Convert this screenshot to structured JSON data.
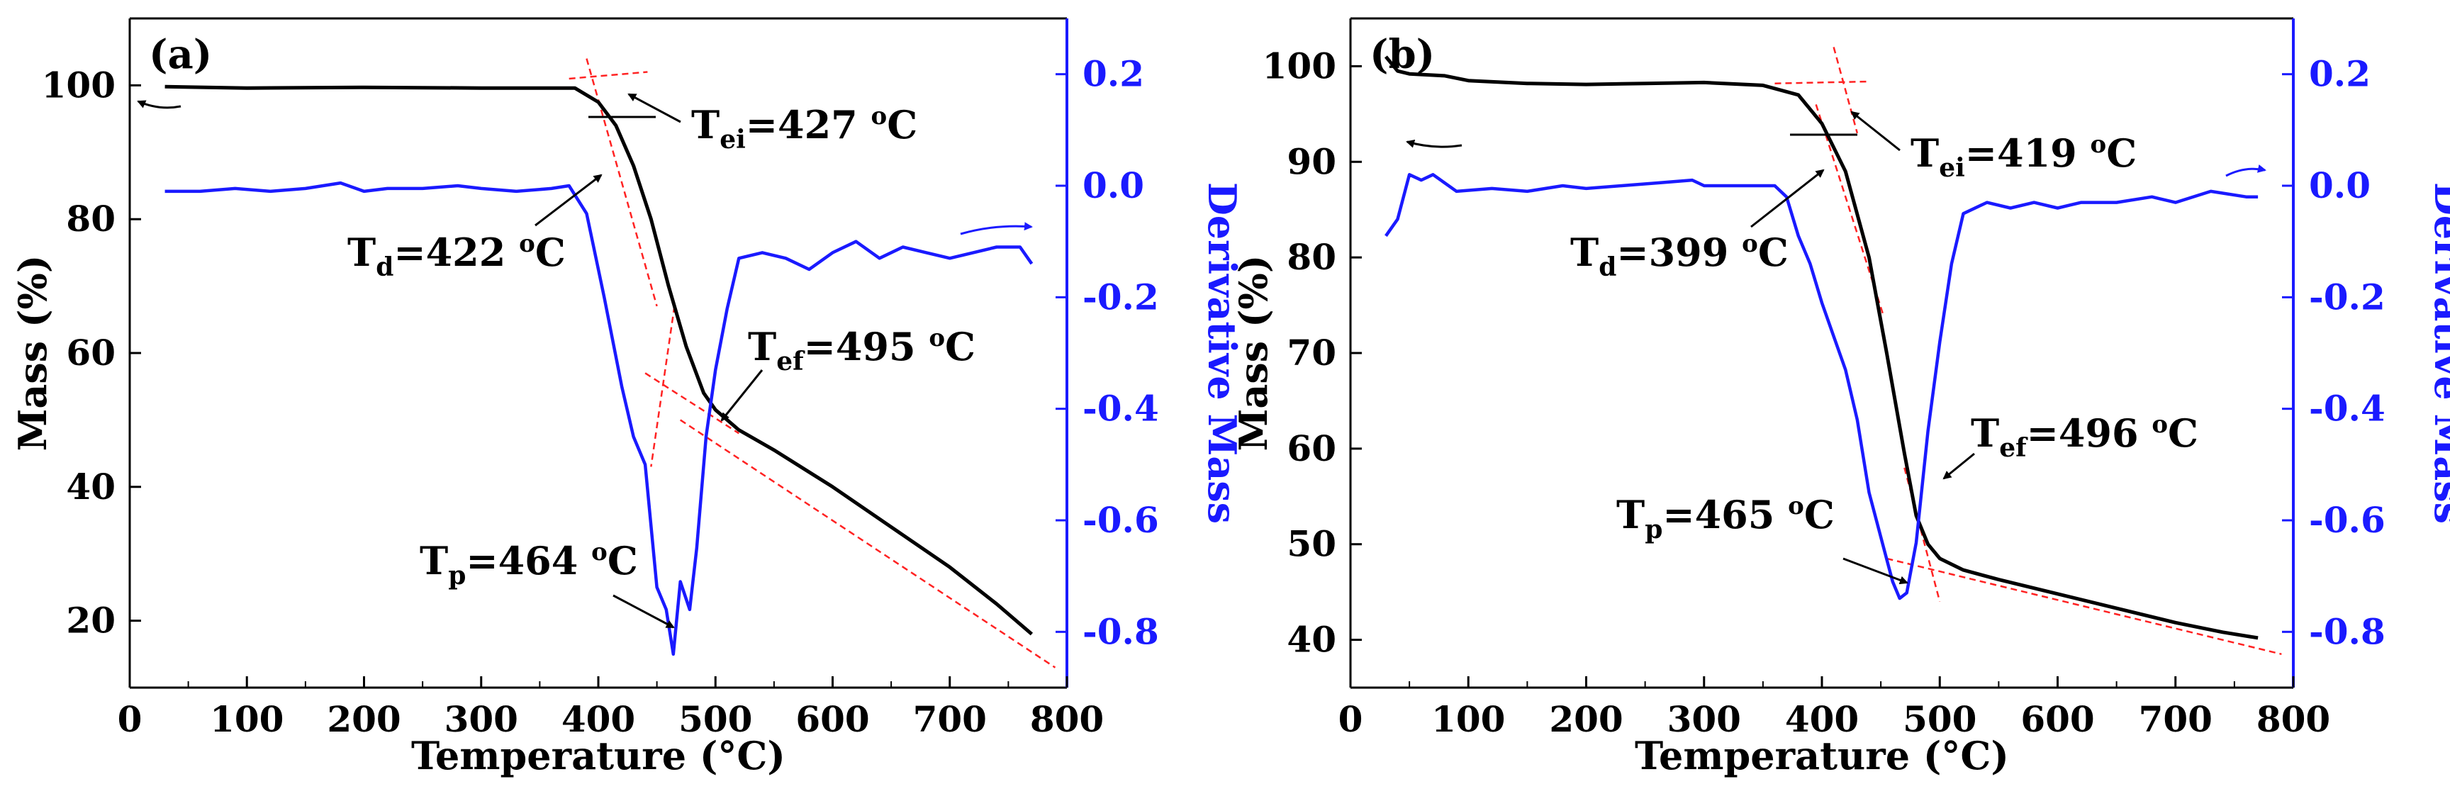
{
  "chart_data": [
    {
      "type": "line",
      "panel_label": "(a)",
      "xlabel": "Temperature (°C)",
      "ylabel_left": "Mass (%)",
      "ylabel_right": "Derivative Mass",
      "xlim": [
        0,
        800
      ],
      "ylim_left": [
        10,
        110
      ],
      "ylim_right": [
        -0.9,
        0.3
      ],
      "xticks": [
        "0",
        "100",
        "200",
        "300",
        "400",
        "500",
        "600",
        "700",
        "800"
      ],
      "yticks_left": [
        "20",
        "40",
        "60",
        "80",
        "100"
      ],
      "yticks_right": [
        "0.2",
        "0.0",
        "-0.2",
        "-0.4",
        "-0.6",
        "-0.8"
      ],
      "colors": {
        "mass": "#000000",
        "derivative": "#1a1aff",
        "tangent": "#ff2222",
        "axis_right": "#1a1aff"
      },
      "series": [
        {
          "name": "Mass",
          "axis": "left",
          "x": [
            30,
            100,
            200,
            300,
            380,
            400,
            415,
            430,
            445,
            460,
            475,
            490,
            500,
            520,
            550,
            600,
            650,
            700,
            740,
            770
          ],
          "y": [
            99.8,
            99.6,
            99.7,
            99.6,
            99.6,
            97.5,
            94,
            88,
            80,
            70,
            61,
            54,
            51.5,
            48.5,
            45.5,
            40,
            34,
            28,
            22.5,
            18
          ]
        },
        {
          "name": "Derivative Mass",
          "axis": "right",
          "x": [
            30,
            60,
            90,
            120,
            150,
            180,
            200,
            220,
            250,
            280,
            300,
            330,
            360,
            375,
            390,
            405,
            420,
            430,
            440,
            450,
            458,
            464,
            470,
            478,
            484,
            492,
            500,
            510,
            520,
            540,
            560,
            580,
            600,
            620,
            640,
            660,
            680,
            700,
            720,
            740,
            760,
            770
          ],
          "y": [
            -0.01,
            -0.01,
            -0.005,
            -0.01,
            -0.005,
            0.005,
            -0.01,
            -0.005,
            -0.005,
            0.0,
            -0.005,
            -0.01,
            -0.005,
            0.0,
            -0.05,
            -0.2,
            -0.36,
            -0.45,
            -0.5,
            -0.72,
            -0.76,
            -0.84,
            -0.71,
            -0.76,
            -0.65,
            -0.45,
            -0.33,
            -0.22,
            -0.13,
            -0.12,
            -0.13,
            -0.15,
            -0.12,
            -0.1,
            -0.13,
            -0.11,
            -0.12,
            -0.13,
            -0.12,
            -0.11,
            -0.11,
            -0.14
          ]
        }
      ],
      "tangents": [
        {
          "from": [
            375,
            101
          ],
          "to": [
            442,
            102
          ]
        },
        {
          "from": [
            390,
            104
          ],
          "to": [
            450,
            67
          ]
        },
        {
          "from": [
            440,
            57
          ],
          "to": [
            520,
            48
          ]
        },
        {
          "from": [
            465,
            67
          ],
          "to": [
            445,
            43
          ]
        },
        {
          "from": [
            470,
            50
          ],
          "to": [
            790,
            13
          ]
        }
      ],
      "annotations": {
        "tei": {
          "base": "T",
          "sub": "ei",
          "value": "=427 ",
          "sup": "o",
          "unit": "C"
        },
        "td": {
          "base": "T",
          "sub": "d",
          "value": "=422 ",
          "sup": "o",
          "unit": "C"
        },
        "tef": {
          "base": "T",
          "sub": "ef",
          "value": "=495 ",
          "sup": "o",
          "unit": "C"
        },
        "tp": {
          "base": "T",
          "sub": "p",
          "value": "=464 ",
          "sup": "o",
          "unit": "C"
        }
      }
    },
    {
      "type": "line",
      "panel_label": "(b)",
      "xlabel": "Temperature (°C)",
      "ylabel_left": "Mass (%)",
      "ylabel_right": "Derivative Mass",
      "xlim": [
        0,
        800
      ],
      "ylim_left": [
        35,
        105
      ],
      "ylim_right": [
        -0.9,
        0.3
      ],
      "xticks": [
        "0",
        "100",
        "200",
        "300",
        "400",
        "500",
        "600",
        "700",
        "800"
      ],
      "yticks_left": [
        "40",
        "50",
        "60",
        "70",
        "80",
        "90",
        "100"
      ],
      "yticks_right": [
        "0.2",
        "0.0",
        "-0.2",
        "-0.4",
        "-0.6",
        "-0.8"
      ],
      "colors": {
        "mass": "#000000",
        "derivative": "#1a1aff",
        "tangent": "#ff2222",
        "axis_right": "#1a1aff"
      },
      "series": [
        {
          "name": "Mass",
          "axis": "left",
          "x": [
            30,
            40,
            50,
            80,
            100,
            150,
            200,
            250,
            300,
            350,
            380,
            400,
            420,
            440,
            455,
            470,
            480,
            490,
            500,
            520,
            550,
            600,
            650,
            700,
            740,
            770
          ],
          "y": [
            101,
            99.5,
            99.2,
            99,
            98.5,
            98.2,
            98.1,
            98.2,
            98.3,
            98,
            97,
            94,
            89,
            80,
            70,
            59.5,
            53,
            50,
            48.5,
            47.3,
            46.3,
            44.8,
            43.3,
            41.8,
            40.8,
            40.2
          ]
        },
        {
          "name": "Derivative Mass",
          "axis": "right",
          "x": [
            30,
            40,
            50,
            60,
            70,
            90,
            120,
            150,
            180,
            200,
            230,
            260,
            290,
            300,
            330,
            360,
            370,
            380,
            390,
            400,
            410,
            420,
            430,
            440,
            450,
            460,
            466,
            472,
            480,
            490,
            500,
            510,
            520,
            540,
            560,
            580,
            600,
            620,
            650,
            680,
            700,
            730,
            760,
            770
          ],
          "y": [
            -0.09,
            -0.06,
            0.02,
            0.01,
            0.02,
            -0.01,
            -0.005,
            -0.01,
            0.0,
            -0.005,
            0.0,
            0.005,
            0.01,
            0.0,
            0.0,
            0.0,
            -0.02,
            -0.09,
            -0.14,
            -0.21,
            -0.27,
            -0.33,
            -0.42,
            -0.55,
            -0.63,
            -0.71,
            -0.74,
            -0.73,
            -0.64,
            -0.44,
            -0.28,
            -0.14,
            -0.05,
            -0.03,
            -0.04,
            -0.03,
            -0.04,
            -0.03,
            -0.03,
            -0.02,
            -0.03,
            -0.01,
            -0.02,
            -0.02
          ]
        }
      ],
      "tangents": [
        {
          "from": [
            360,
            98.2
          ],
          "to": [
            440,
            98.4
          ]
        },
        {
          "from": [
            395,
            96
          ],
          "to": [
            452,
            74
          ]
        },
        {
          "from": [
            470,
            58
          ],
          "to": [
            500,
            44
          ]
        },
        {
          "from": [
            455,
            48.5
          ],
          "to": [
            790,
            38.5
          ]
        },
        {
          "from": [
            410,
            102
          ],
          "to": [
            430,
            93
          ]
        }
      ],
      "annotations": {
        "tei": {
          "base": "T",
          "sub": "ei",
          "value": "=419 ",
          "sup": "o",
          "unit": "C"
        },
        "td": {
          "base": "T",
          "sub": "d",
          "value": "=399 ",
          "sup": "o",
          "unit": "C"
        },
        "tef": {
          "base": "T",
          "sub": "ef",
          "value": "=496 ",
          "sup": "o",
          "unit": "C"
        },
        "tp": {
          "base": "T",
          "sub": "p",
          "value": "=465 ",
          "sup": "o",
          "unit": "C"
        }
      }
    }
  ]
}
